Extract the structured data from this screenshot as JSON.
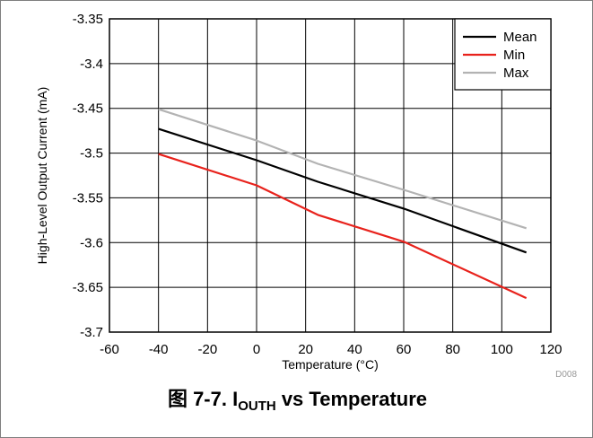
{
  "chart_data": {
    "type": "line",
    "title": "",
    "xlabel": "Temperature (°C)",
    "ylabel": "High-Level Output Current (mA)",
    "xlim": [
      -60,
      120
    ],
    "ylim": [
      -3.7,
      -3.35
    ],
    "x_ticks": [
      "-60",
      "-40",
      "-20",
      "0",
      "20",
      "40",
      "60",
      "80",
      "100",
      "120"
    ],
    "y_ticks": [
      "-3.35",
      "-3.4",
      "-3.45",
      "-3.5",
      "-3.55",
      "-3.6",
      "-3.65",
      "-3.7"
    ],
    "grid": true,
    "legend_position": "top-right",
    "series": [
      {
        "name": "Mean",
        "color": "#000000",
        "x": [
          -40,
          0,
          25,
          60,
          110
        ],
        "y": [
          -3.473,
          -3.508,
          -3.532,
          -3.562,
          -3.611
        ]
      },
      {
        "name": "Min",
        "color": "#e8221c",
        "x": [
          -40,
          0,
          25,
          60,
          110
        ],
        "y": [
          -3.501,
          -3.536,
          -3.569,
          -3.599,
          -3.662
        ]
      },
      {
        "name": "Max",
        "color": "#b3b3b3",
        "x": [
          -40,
          0,
          25,
          60,
          110
        ],
        "y": [
          -3.451,
          -3.486,
          -3.512,
          -3.541,
          -3.584
        ]
      }
    ]
  },
  "figure_code": "D008",
  "caption": {
    "prefix": "图 7-7. I",
    "subscript": "OUTH",
    "suffix": " vs Temperature"
  }
}
